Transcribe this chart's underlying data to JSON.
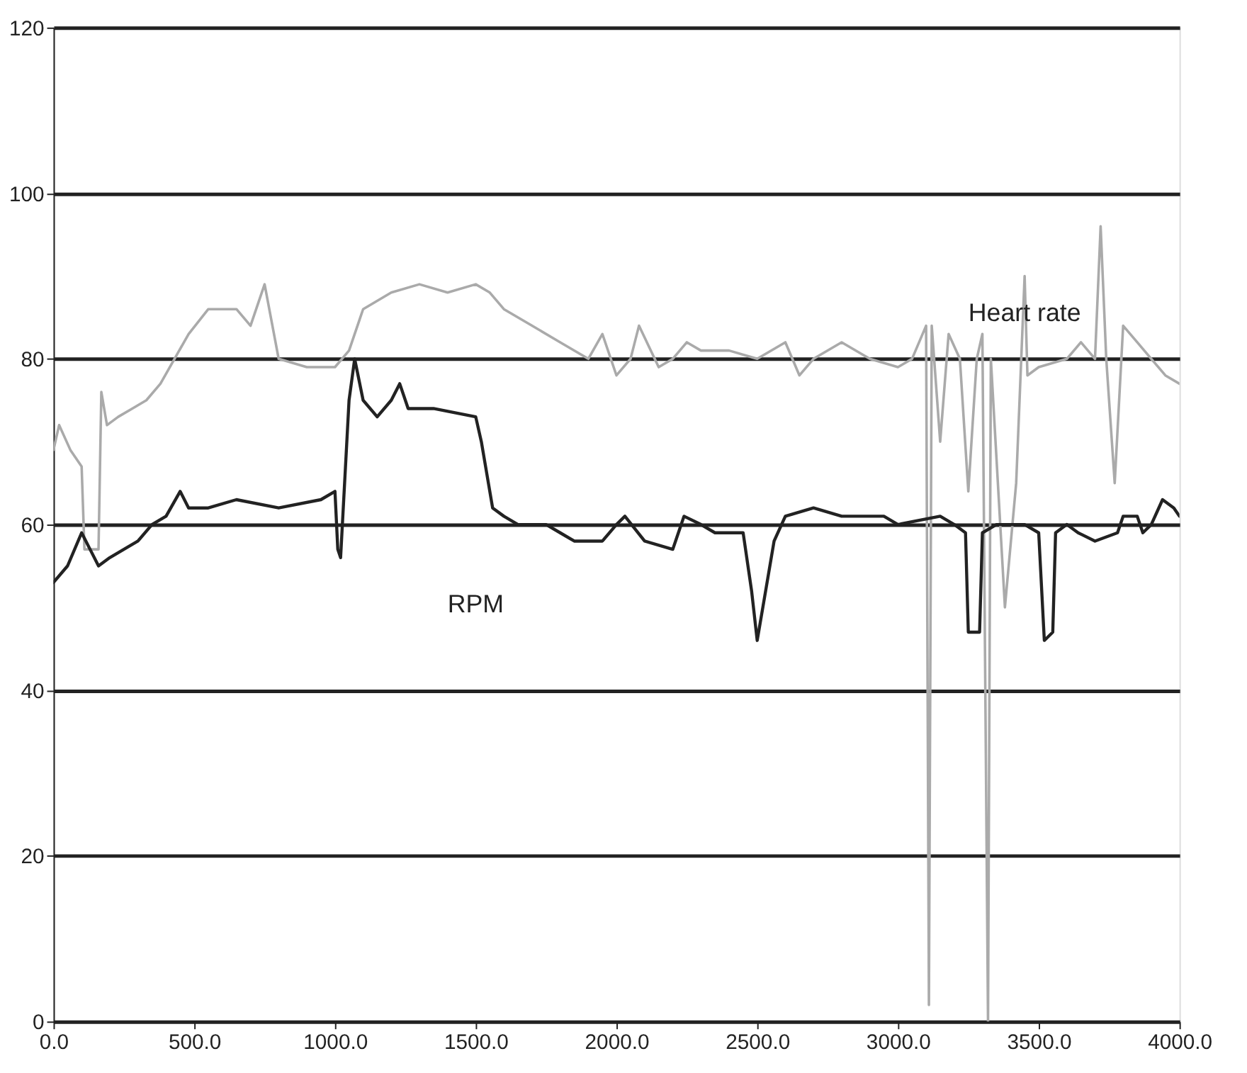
{
  "chart_data": {
    "type": "line",
    "xlim": [
      0,
      4000
    ],
    "xticks": [
      {
        "value": 0,
        "label": "0.0"
      },
      {
        "value": 500,
        "label": "500.0"
      },
      {
        "value": 1000,
        "label": "1000.0"
      },
      {
        "value": 1500,
        "label": "1500.0"
      },
      {
        "value": 2000,
        "label": "2000.0"
      },
      {
        "value": 2500,
        "label": "2500.0"
      },
      {
        "value": 3000,
        "label": "3000.0"
      },
      {
        "value": 3500,
        "label": "3500.0"
      },
      {
        "value": 4000,
        "label": "4000.0"
      }
    ],
    "ylim": [
      0,
      120
    ],
    "yticks": [
      0,
      20,
      40,
      60,
      80,
      100,
      120
    ],
    "grid": "y",
    "line_style": "solid",
    "legend": false,
    "series": [
      {
        "name": "Heart rate",
        "color": "#aaaaaa",
        "x": [
          0,
          20,
          60,
          100,
          110,
          160,
          170,
          190,
          230,
          280,
          330,
          380,
          430,
          480,
          550,
          650,
          700,
          750,
          800,
          900,
          1000,
          1050,
          1100,
          1200,
          1300,
          1400,
          1500,
          1550,
          1600,
          1700,
          1800,
          1900,
          1950,
          2000,
          2050,
          2080,
          2150,
          2200,
          2250,
          2300,
          2400,
          2500,
          2600,
          2650,
          2700,
          2800,
          2900,
          3000,
          3050,
          3100,
          3110,
          3120,
          3150,
          3180,
          3220,
          3250,
          3280,
          3300,
          3320,
          3330,
          3380,
          3420,
          3450,
          3460,
          3500,
          3600,
          3650,
          3700,
          3720,
          3740,
          3770,
          3800,
          3850,
          3900,
          3950,
          4000
        ],
        "values": [
          69,
          72,
          69,
          67,
          57,
          57,
          76,
          72,
          73,
          74,
          75,
          77,
          80,
          83,
          86,
          86,
          84,
          89,
          80,
          79,
          79,
          81,
          86,
          88,
          89,
          88,
          89,
          88,
          86,
          84,
          82,
          80,
          83,
          78,
          80,
          84,
          79,
          80,
          82,
          81,
          81,
          80,
          82,
          78,
          80,
          82,
          80,
          79,
          80,
          84,
          2,
          84,
          70,
          83,
          80,
          64,
          80,
          83,
          0,
          80,
          50,
          65,
          90,
          78,
          79,
          80,
          82,
          80,
          96,
          80,
          65,
          84,
          82,
          80,
          78,
          77
        ]
      },
      {
        "name": "RPM",
        "color": "#222222",
        "x": [
          0,
          50,
          100,
          130,
          160,
          200,
          250,
          300,
          350,
          400,
          450,
          480,
          550,
          650,
          800,
          950,
          1000,
          1010,
          1020,
          1050,
          1070,
          1100,
          1150,
          1200,
          1230,
          1260,
          1350,
          1500,
          1520,
          1560,
          1600,
          1650,
          1750,
          1800,
          1850,
          1950,
          2000,
          2030,
          2100,
          2200,
          2240,
          2300,
          2350,
          2450,
          2480,
          2500,
          2530,
          2560,
          2600,
          2700,
          2800,
          2950,
          3000,
          3150,
          3200,
          3240,
          3250,
          3290,
          3300,
          3350,
          3450,
          3500,
          3520,
          3550,
          3560,
          3600,
          3640,
          3700,
          3780,
          3800,
          3850,
          3870,
          3900,
          3940,
          3980,
          4000
        ],
        "values": [
          53,
          55,
          59,
          57,
          55,
          56,
          57,
          58,
          60,
          61,
          64,
          62,
          62,
          63,
          62,
          63,
          64,
          57,
          56,
          75,
          80,
          75,
          73,
          75,
          77,
          74,
          74,
          73,
          70,
          62,
          61,
          60,
          60,
          59,
          58,
          58,
          60,
          61,
          58,
          57,
          61,
          60,
          59,
          59,
          52,
          46,
          52,
          58,
          61,
          62,
          61,
          61,
          60,
          61,
          60,
          59,
          47,
          47,
          59,
          60,
          60,
          59,
          46,
          47,
          59,
          60,
          59,
          58,
          59,
          61,
          61,
          59,
          60,
          63,
          62,
          61
        ]
      }
    ]
  }
}
